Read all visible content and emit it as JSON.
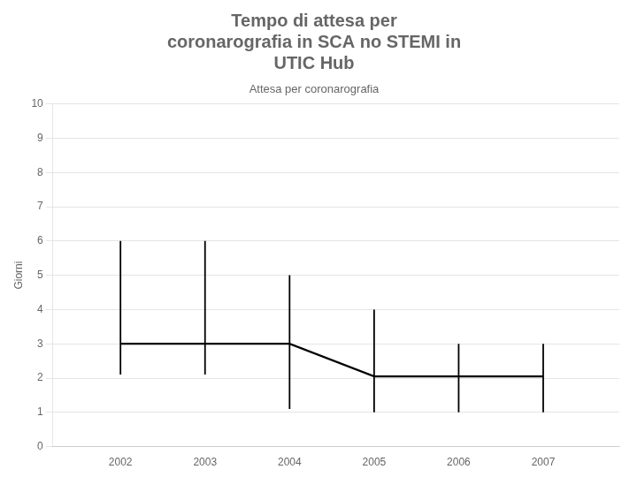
{
  "chart_data": {
    "type": "line",
    "title": [
      "Tempo di attesa per",
      "coronarografia in SCA no STEMI in",
      "UTIC Hub"
    ],
    "subtitle": "Attesa per coronarografia",
    "y_label": "Giorni",
    "x": [
      2002,
      2003,
      2004,
      2005,
      2006,
      2007
    ],
    "values": [
      3.0,
      3.0,
      3.0,
      2.05,
      2.05,
      2.05
    ],
    "lower": [
      2.1,
      2.1,
      1.1,
      1.0,
      1.0,
      1.0
    ],
    "upper": [
      6.0,
      6.0,
      5.0,
      4.0,
      3.0,
      3.0
    ],
    "color": "#000000",
    "xlim": [
      2001.2,
      2007.9
    ],
    "xticks": [
      2002,
      2003,
      2004,
      2005,
      2006,
      2007
    ],
    "ylim": [
      0,
      10
    ],
    "yticks": [
      0,
      1,
      2,
      3,
      4,
      5,
      6,
      7,
      8,
      9,
      10
    ],
    "grid": "y"
  }
}
